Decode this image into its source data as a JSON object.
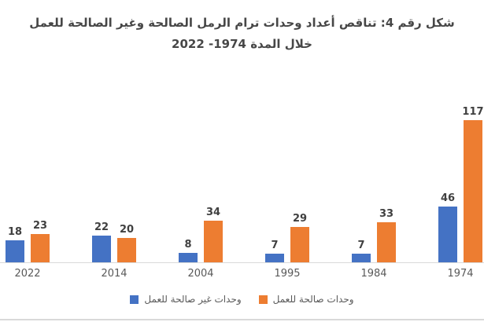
{
  "header": {
    "title_line1": "شكل رقم 4: تناقص أعداد وحدات ترام الرمل الصالحة وغير الصالحة للعمل",
    "title_line2": "خلال المدة 1974- 2022"
  },
  "chart_data": {
    "type": "bar",
    "title": "شكل رقم 4: تناقص أعداد وحدات ترام الرمل الصالحة وغير الصالحة للعمل خلال المدة 1974- 2022",
    "categories": [
      "2022",
      "2014",
      "2004",
      "1995",
      "1984",
      "1974"
    ],
    "series": [
      {
        "name": "وحدات غير صالحة للعمل",
        "color": "#4472C4",
        "values": [
          18,
          22,
          8,
          7,
          7,
          46
        ]
      },
      {
        "name": "وحدات صالحة للعمل",
        "color": "#ED7D31",
        "values": [
          23,
          20,
          34,
          29,
          33,
          117
        ]
      }
    ],
    "xlabel": "",
    "ylabel": "",
    "ylim": [
      0,
      117
    ],
    "grid": false,
    "value_labels": true,
    "legend_position": "bottom",
    "category_order_note": "years displayed left-to-right from 2022 (newest) to 1974 (oldest)"
  },
  "colors": {
    "title_text": "#474747",
    "value_label_text": "#404040",
    "axis_label_text": "#595959",
    "legend_text": "#595959",
    "axis_line": "#D9D9D9",
    "page_edge_line": "#D9D9D9"
  }
}
